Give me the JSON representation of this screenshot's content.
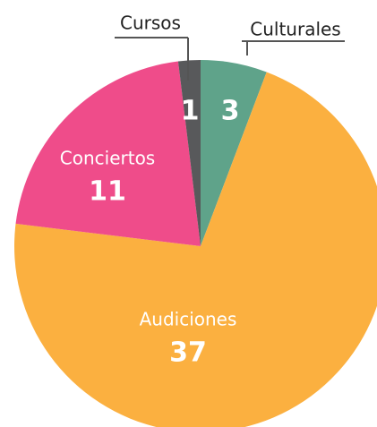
{
  "chart_data": {
    "type": "pie",
    "categories": [
      "Culturales",
      "Audiciones",
      "Conciertos",
      "Cursos"
    ],
    "values": [
      3,
      37,
      11,
      1
    ],
    "colors": [
      "#5fa38a",
      "#fbb040",
      "#ef4c8a",
      "#58595b"
    ]
  }
}
